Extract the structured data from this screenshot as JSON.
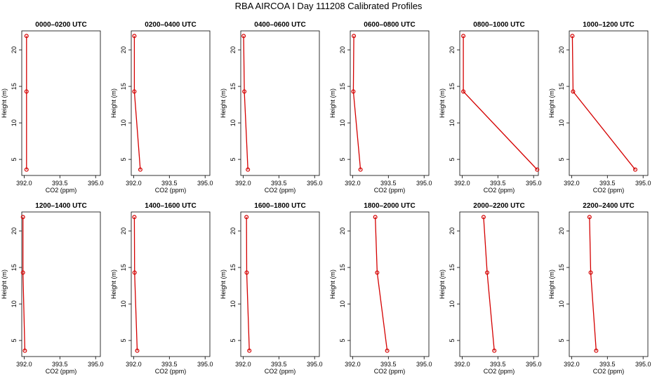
{
  "page": {
    "title": "RBA AIRCOA I  Day 111208  Calibrated Profiles"
  },
  "style": {
    "line_color": "#d40000",
    "axis_color": "#000000"
  },
  "chart_data": {
    "type": "line",
    "panel_count": 12,
    "layout": "2 rows x 6 columns",
    "xlabel": "CO2 (ppm)",
    "ylabel": "Height (m)",
    "xlim": [
      391.9,
      395.2
    ],
    "ylim": [
      2.8,
      22.6
    ],
    "xticks": [
      392.0,
      393.5,
      395.0
    ],
    "xtick_labels": [
      "392.0",
      "393.5",
      "395.0"
    ],
    "yticks": [
      5,
      10,
      15,
      20
    ],
    "ytick_labels": [
      "5",
      "10",
      "15",
      "20"
    ],
    "heights": [
      21.9,
      14.3,
      3.6
    ],
    "panels": [
      {
        "title": "0000–0200 UTC",
        "co2": [
          392.1,
          392.1,
          392.1
        ]
      },
      {
        "title": "0200–0400 UTC",
        "co2": [
          392.03,
          392.03,
          392.28
        ]
      },
      {
        "title": "0400–0600 UTC",
        "co2": [
          392.02,
          392.05,
          392.2
        ]
      },
      {
        "title": "0600–0800 UTC",
        "co2": [
          392.05,
          392.03,
          392.33
        ]
      },
      {
        "title": "0800–1000 UTC",
        "co2": [
          392.05,
          392.05,
          395.15
        ]
      },
      {
        "title": "1000–1200 UTC",
        "co2": [
          392.03,
          392.06,
          394.67
        ]
      },
      {
        "title": "1200–1400 UTC",
        "co2": [
          391.95,
          391.95,
          392.03
        ]
      },
      {
        "title": "1400–1600 UTC",
        "co2": [
          392.03,
          392.04,
          392.15
        ]
      },
      {
        "title": "1600–1800 UTC",
        "co2": [
          392.14,
          392.15,
          392.26
        ]
      },
      {
        "title": "1800–2000 UTC",
        "co2": [
          392.95,
          393.03,
          393.45
        ]
      },
      {
        "title": "2000–2200 UTC",
        "co2": [
          392.9,
          393.05,
          393.35
        ]
      },
      {
        "title": "2200–2400 UTC",
        "co2": [
          392.75,
          392.8,
          393.03
        ]
      }
    ]
  }
}
